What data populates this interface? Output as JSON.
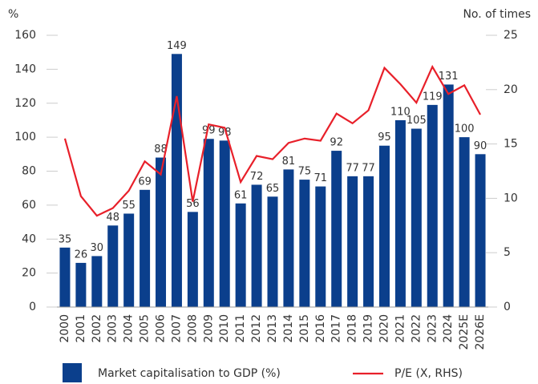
{
  "chart_data": {
    "type": "bar_line",
    "ylabel": "%",
    "y2label": "No. of times",
    "categories": [
      "2000",
      "2001",
      "2002",
      "2003",
      "2004",
      "2005",
      "2006",
      "2007",
      "2008",
      "2009",
      "2010",
      "2011",
      "2012",
      "2013",
      "2014",
      "2015",
      "2016",
      "2017",
      "2018",
      "2019",
      "2020",
      "2021",
      "2022",
      "2023",
      "2024",
      "2025E",
      "2026E"
    ],
    "series": [
      {
        "name": "Market capitalisation to GDP (%)",
        "type": "bar",
        "color": "#0b3f8c",
        "axis": "y",
        "values": [
          35,
          26,
          30,
          48,
          55,
          69,
          88,
          149,
          56,
          99,
          98,
          61,
          72,
          65,
          81,
          75,
          71,
          92,
          77,
          77,
          95,
          110,
          105,
          119,
          131,
          100,
          90
        ]
      },
      {
        "name": "P/E (X, RHS)",
        "type": "line",
        "color": "#e8202a",
        "axis": "y2",
        "values": [
          15.5,
          10.2,
          8.4,
          9.1,
          10.7,
          13.4,
          12.2,
          19.4,
          9.7,
          16.8,
          16.5,
          11.5,
          13.9,
          13.6,
          15.1,
          15.5,
          15.3,
          17.8,
          16.9,
          18.1,
          22.0,
          20.5,
          18.8,
          22.1,
          19.6,
          20.4,
          17.7
        ]
      }
    ],
    "ylim": [
      0,
      160
    ],
    "yticks": [
      0,
      20,
      40,
      60,
      80,
      100,
      120,
      140,
      160
    ],
    "y2lim": [
      0,
      25
    ],
    "y2ticks": [
      0,
      5,
      10,
      15,
      20,
      25
    ]
  }
}
